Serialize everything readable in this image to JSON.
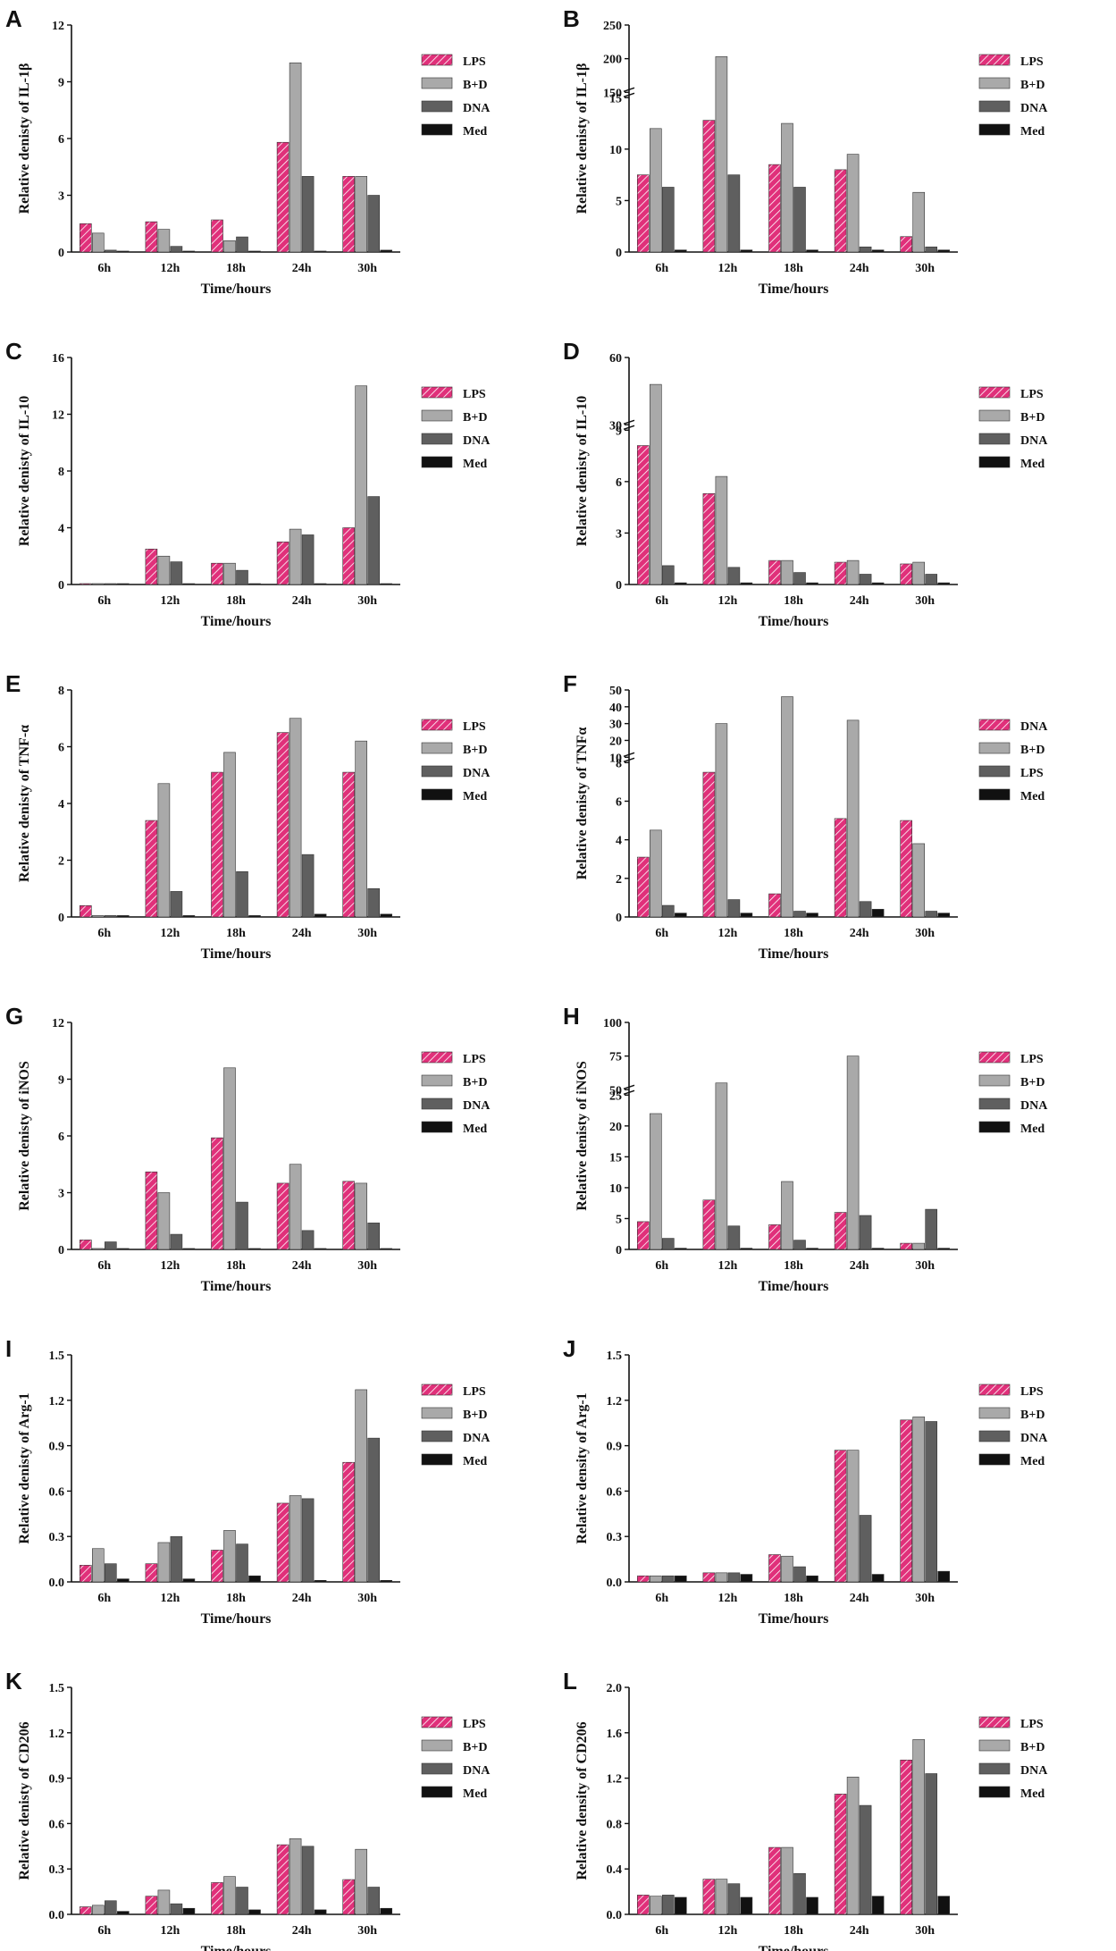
{
  "figure": {
    "x_title": "Time/hours",
    "categories": [
      "6h",
      "12h",
      "18h",
      "24h",
      "30h"
    ],
    "palette": {
      "pink": "#e0307a",
      "hatch": "#ffffff",
      "light": "#a9a9a9",
      "dark": "#5f5f5f",
      "black": "#111111"
    }
  },
  "chart_data": [
    {
      "panel": "A",
      "type": "bar",
      "title": "",
      "ylabel": "Relative denisty of IL-1β",
      "xlabel": "Time/hours",
      "categories": [
        "6h",
        "12h",
        "18h",
        "24h",
        "30h"
      ],
      "ylim": [
        0,
        12
      ],
      "yticks": [
        0,
        3,
        6,
        9,
        12
      ],
      "series": [
        {
          "name": "LPS",
          "values": [
            1.5,
            1.6,
            1.7,
            5.8,
            4.0
          ]
        },
        {
          "name": "B+D",
          "values": [
            1.0,
            1.2,
            0.6,
            10.0,
            4.0
          ]
        },
        {
          "name": "DNA",
          "values": [
            0.1,
            0.3,
            0.8,
            4.0,
            3.0
          ]
        },
        {
          "name": "Med",
          "values": [
            0.05,
            0.05,
            0.05,
            0.05,
            0.1
          ]
        }
      ]
    },
    {
      "panel": "B",
      "type": "bar",
      "title": "",
      "ylabel": "Relative denisty of IL-1β",
      "xlabel": "Time/hours",
      "categories": [
        "6h",
        "12h",
        "18h",
        "24h",
        "30h"
      ],
      "ylim": [
        0,
        250
      ],
      "yticks": [
        0,
        5,
        10,
        15,
        150,
        200,
        250
      ],
      "axis_break": [
        15,
        150
      ],
      "series": [
        {
          "name": "LPS",
          "values": [
            7.5,
            12.8,
            8.5,
            8.0,
            1.5
          ]
        },
        {
          "name": "B+D",
          "values": [
            12.0,
            203,
            12.5,
            9.5,
            5.8
          ]
        },
        {
          "name": "DNA",
          "values": [
            6.3,
            7.5,
            6.3,
            0.5,
            0.5
          ]
        },
        {
          "name": "Med",
          "values": [
            0.2,
            0.2,
            0.2,
            0.2,
            0.2
          ]
        }
      ]
    },
    {
      "panel": "C",
      "type": "bar",
      "title": "",
      "ylabel": "Relative denisty of IL-10",
      "xlabel": "Time/hours",
      "categories": [
        "6h",
        "12h",
        "18h",
        "24h",
        "30h"
      ],
      "ylim": [
        0,
        16
      ],
      "yticks": [
        0,
        4,
        8,
        12,
        16
      ],
      "series": [
        {
          "name": "LPS",
          "values": [
            0.05,
            2.5,
            1.5,
            3.0,
            4.0
          ]
        },
        {
          "name": "B+D",
          "values": [
            0.05,
            2.0,
            1.5,
            3.9,
            14.0
          ]
        },
        {
          "name": "DNA",
          "values": [
            0.05,
            1.6,
            1.0,
            3.5,
            6.2
          ]
        },
        {
          "name": "Med",
          "values": [
            0.05,
            0.05,
            0.05,
            0.05,
            0.05
          ]
        }
      ]
    },
    {
      "panel": "D",
      "type": "bar",
      "title": "",
      "ylabel": "Relative denisty of IL-10",
      "xlabel": "Time/hours",
      "categories": [
        "6h",
        "12h",
        "18h",
        "24h",
        "30h"
      ],
      "ylim": [
        0,
        60
      ],
      "yticks": [
        0,
        3,
        6,
        9,
        30,
        60
      ],
      "axis_break": [
        9,
        30
      ],
      "series": [
        {
          "name": "LPS",
          "values": [
            8.1,
            5.3,
            1.4,
            1.3,
            1.2
          ]
        },
        {
          "name": "B+D",
          "values": [
            48,
            6.3,
            1.4,
            1.4,
            1.3
          ]
        },
        {
          "name": "DNA",
          "values": [
            1.1,
            1.0,
            0.7,
            0.6,
            0.6
          ]
        },
        {
          "name": "Med",
          "values": [
            0.1,
            0.1,
            0.1,
            0.1,
            0.1
          ]
        }
      ]
    },
    {
      "panel": "E",
      "type": "bar",
      "title": "",
      "ylabel": "Relative denisty of TNF-α",
      "xlabel": "Time/hours",
      "categories": [
        "6h",
        "12h",
        "18h",
        "24h",
        "30h"
      ],
      "ylim": [
        0,
        8
      ],
      "yticks": [
        0,
        2,
        4,
        6,
        8
      ],
      "series": [
        {
          "name": "LPS",
          "values": [
            0.4,
            3.4,
            5.1,
            6.5,
            5.1
          ]
        },
        {
          "name": "B+D",
          "values": [
            0.05,
            4.7,
            5.8,
            7.0,
            6.2
          ]
        },
        {
          "name": "DNA",
          "values": [
            0.05,
            0.9,
            1.6,
            2.2,
            1.0
          ]
        },
        {
          "name": "Med",
          "values": [
            0.05,
            0.05,
            0.05,
            0.1,
            0.1
          ]
        }
      ]
    },
    {
      "panel": "F",
      "type": "bar",
      "title": "",
      "ylabel": "Relative denisty of TNFα",
      "xlabel": "Time/hours",
      "categories": [
        "6h",
        "12h",
        "18h",
        "24h",
        "30h"
      ],
      "ylim": [
        0,
        50
      ],
      "yticks": [
        0,
        2,
        4,
        6,
        8,
        10,
        20,
        30,
        40,
        50
      ],
      "axis_break": [
        8,
        10
      ],
      "series": [
        {
          "name": "DNA",
          "values": [
            3.1,
            7.5,
            1.2,
            5.1,
            5.0
          ]
        },
        {
          "name": "B+D",
          "values": [
            4.5,
            30,
            46,
            32,
            3.8
          ]
        },
        {
          "name": "LPS",
          "values": [
            0.6,
            0.9,
            0.3,
            0.8,
            0.3
          ]
        },
        {
          "name": "Med",
          "values": [
            0.2,
            0.2,
            0.2,
            0.4,
            0.2
          ]
        }
      ]
    },
    {
      "panel": "G",
      "type": "bar",
      "title": "",
      "ylabel": "Relative denisty of iNOS",
      "xlabel": "Time/hours",
      "categories": [
        "6h",
        "12h",
        "18h",
        "24h",
        "30h"
      ],
      "ylim": [
        0,
        12
      ],
      "yticks": [
        0,
        3,
        6,
        9,
        12
      ],
      "series": [
        {
          "name": "LPS",
          "values": [
            0.5,
            4.1,
            5.9,
            3.5,
            3.6
          ]
        },
        {
          "name": "B+D",
          "values": [
            0.05,
            3.0,
            9.6,
            4.5,
            3.5
          ]
        },
        {
          "name": "DNA",
          "values": [
            0.4,
            0.8,
            2.5,
            1.0,
            1.4
          ]
        },
        {
          "name": "Med",
          "values": [
            0.05,
            0.05,
            0.05,
            0.05,
            0.05
          ]
        }
      ]
    },
    {
      "panel": "H",
      "type": "bar",
      "title": "",
      "ylabel": "Relative denisty of iNOS",
      "xlabel": "Time/hours",
      "categories": [
        "6h",
        "12h",
        "18h",
        "24h",
        "30h"
      ],
      "ylim": [
        0,
        100
      ],
      "yticks": [
        0,
        5,
        10,
        15,
        20,
        25,
        50,
        75,
        100
      ],
      "axis_break": [
        25,
        50
      ],
      "series": [
        {
          "name": "LPS",
          "values": [
            4.5,
            8.0,
            4.0,
            6.0,
            1.0
          ]
        },
        {
          "name": "B+D",
          "values": [
            22,
            55,
            11.0,
            75,
            1.0
          ]
        },
        {
          "name": "DNA",
          "values": [
            1.8,
            3.8,
            1.5,
            5.5,
            6.5
          ]
        },
        {
          "name": "Med",
          "values": [
            0.2,
            0.2,
            0.2,
            0.2,
            0.2
          ]
        }
      ]
    },
    {
      "panel": "I",
      "type": "bar",
      "title": "",
      "ylabel": "Relative denisty of Arg-1",
      "xlabel": "Time/hours",
      "categories": [
        "6h",
        "12h",
        "18h",
        "24h",
        "30h"
      ],
      "ylim": [
        0,
        1.5
      ],
      "yticks": [
        0.0,
        0.3,
        0.6,
        0.9,
        1.2,
        1.5
      ],
      "series": [
        {
          "name": "LPS",
          "values": [
            0.11,
            0.12,
            0.21,
            0.52,
            0.79
          ]
        },
        {
          "name": "B+D",
          "values": [
            0.22,
            0.26,
            0.34,
            0.57,
            1.27
          ]
        },
        {
          "name": "DNA",
          "values": [
            0.12,
            0.3,
            0.25,
            0.55,
            0.95
          ]
        },
        {
          "name": "Med",
          "values": [
            0.02,
            0.02,
            0.04,
            0.01,
            0.01
          ]
        }
      ]
    },
    {
      "panel": "J",
      "type": "bar",
      "title": "",
      "ylabel": "Relative density of Arg-1",
      "xlabel": "Time/hours",
      "categories": [
        "6h",
        "12h",
        "18h",
        "24h",
        "30h"
      ],
      "ylim": [
        0,
        1.5
      ],
      "yticks": [
        0.0,
        0.3,
        0.6,
        0.9,
        1.2,
        1.5
      ],
      "series": [
        {
          "name": "LPS",
          "values": [
            0.04,
            0.06,
            0.18,
            0.87,
            1.07
          ]
        },
        {
          "name": "B+D",
          "values": [
            0.04,
            0.06,
            0.17,
            0.87,
            1.09
          ]
        },
        {
          "name": "DNA",
          "values": [
            0.04,
            0.06,
            0.1,
            0.44,
            1.06
          ]
        },
        {
          "name": "Med",
          "values": [
            0.04,
            0.05,
            0.04,
            0.05,
            0.07
          ]
        }
      ]
    },
    {
      "panel": "K",
      "type": "bar",
      "title": "",
      "ylabel": "Relative denisty of CD206",
      "xlabel": "Time/hours",
      "categories": [
        "6h",
        "12h",
        "18h",
        "24h",
        "30h"
      ],
      "ylim": [
        0,
        1.5
      ],
      "yticks": [
        0.0,
        0.3,
        0.6,
        0.9,
        1.2,
        1.5
      ],
      "series": [
        {
          "name": "LPS",
          "values": [
            0.05,
            0.12,
            0.21,
            0.46,
            0.23
          ]
        },
        {
          "name": "B+D",
          "values": [
            0.06,
            0.16,
            0.25,
            0.5,
            0.43
          ]
        },
        {
          "name": "DNA",
          "values": [
            0.09,
            0.07,
            0.18,
            0.45,
            0.18
          ]
        },
        {
          "name": "Med",
          "values": [
            0.02,
            0.04,
            0.03,
            0.03,
            0.04
          ]
        }
      ]
    },
    {
      "panel": "L",
      "type": "bar",
      "title": "",
      "ylabel": "Relative density of CD206",
      "xlabel": "Time/hours",
      "categories": [
        "6h",
        "12h",
        "18h",
        "24h",
        "30h"
      ],
      "ylim": [
        0,
        2.0
      ],
      "yticks": [
        0.0,
        0.4,
        0.8,
        1.2,
        1.6,
        2.0
      ],
      "series": [
        {
          "name": "LPS",
          "values": [
            0.17,
            0.31,
            0.59,
            1.06,
            1.36
          ]
        },
        {
          "name": "B+D",
          "values": [
            0.16,
            0.31,
            0.59,
            1.21,
            1.54
          ]
        },
        {
          "name": "DNA",
          "values": [
            0.17,
            0.27,
            0.36,
            0.96,
            1.24
          ]
        },
        {
          "name": "Med",
          "values": [
            0.15,
            0.15,
            0.15,
            0.16,
            0.16
          ]
        }
      ]
    }
  ]
}
